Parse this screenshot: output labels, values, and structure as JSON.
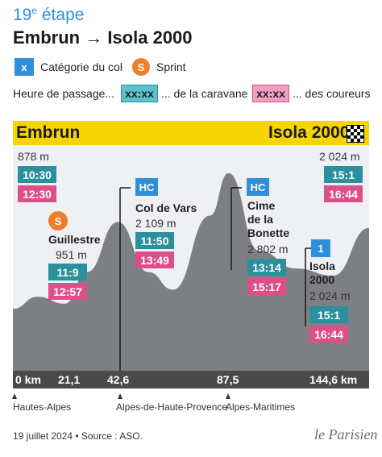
{
  "header": {
    "stage_number": "19",
    "stage_suffix": "e",
    "stage_word": " étape",
    "route": "Embrun → Isola 2000"
  },
  "legend": {
    "category_badge": "x",
    "category_label": "Catégorie du col",
    "sprint_badge": "S",
    "sprint_label": "Sprint",
    "passage_label": "Heure de passage...",
    "caravane_box": "xx:xx",
    "caravane_label": "... de la caravane",
    "coureurs_box": "xx:xx",
    "coureurs_label": "... des coureurs"
  },
  "profile": {
    "start_name": "Embrun",
    "finish_name": "Isola 2000",
    "start_altitude": "878 m",
    "start_caravane": "10:30",
    "start_coureurs": "12:30",
    "finish_altitude": "2 024 m",
    "finish_caravane": "15:1",
    "finish_coureurs": "16:44"
  },
  "points": [
    {
      "category": "S",
      "name": "Guillestre",
      "altitude": "951 m",
      "caravane": "11:9",
      "coureurs": "12:57"
    },
    {
      "category": "HC",
      "name": "Col de Vars",
      "altitude": "2 109 m",
      "caravane": "11:50",
      "coureurs": "13:49"
    },
    {
      "category": "HC",
      "name": "Cime de la Bonette",
      "altitude": "2 802 m",
      "caravane": "13:14",
      "coureurs": "15:17"
    },
    {
      "category": "1",
      "name": "Isola 2000",
      "altitude": "2 024 m",
      "caravane": "15:1",
      "coureurs": "16:44"
    }
  ],
  "bonette_lines": [
    "Cime",
    "de la",
    "Bonette"
  ],
  "isola_lines": [
    "Isola",
    "2000"
  ],
  "km_labels": [
    "0 km",
    "21,1",
    "42,6",
    "87,5",
    "144,6 km"
  ],
  "regions": [
    "Hautes-Alpes",
    "Alpes-de-Haute-Provence",
    "Alpes-Maritimes"
  ],
  "footer": "19 juillet 2024 • Source : ASO.",
  "brand": "le Parisien",
  "colors": {
    "blue": "#2f8fd8",
    "orange": "#ef7d2b",
    "teal": "#2c8f9d",
    "pink": "#dd4f8a",
    "yellow": "#f6d400",
    "profile": "#7d7f83"
  },
  "chart_data": {
    "type": "area",
    "title": "",
    "xlabel": "",
    "ylabel": "",
    "x_unit": "km",
    "y_unit": "m",
    "x": [
      0,
      10,
      21.1,
      30,
      42.6,
      55,
      65,
      80,
      87.5,
      100,
      115,
      130,
      144.6
    ],
    "values": [
      878,
      1050,
      951,
      1400,
      2109,
      1400,
      1150,
      2200,
      2802,
      1700,
      1450,
      1350,
      2024
    ],
    "xlim": [
      0,
      144.6
    ],
    "ylim": [
      0,
      3200
    ],
    "x_ticks": [
      0,
      21.1,
      42.6,
      87.5,
      144.6
    ],
    "grid": false
  }
}
